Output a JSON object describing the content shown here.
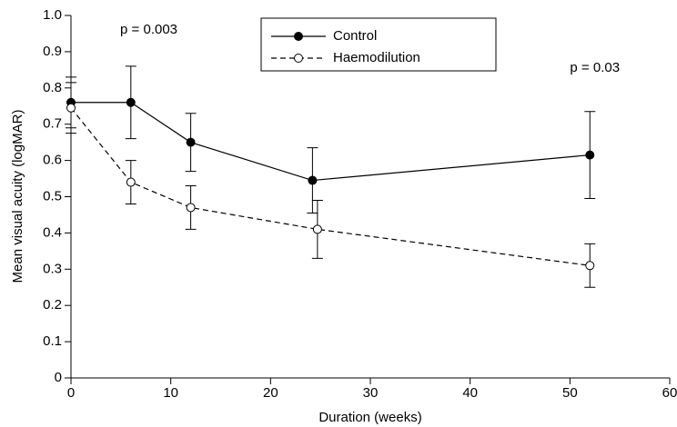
{
  "chart_data": {
    "type": "line",
    "x_label": "Duration (weeks)",
    "y_label": "Mean visual acuity (logMAR)",
    "xlim": [
      0,
      60
    ],
    "xticks": [
      0,
      10,
      20,
      30,
      40,
      50,
      60
    ],
    "ylim": [
      0,
      1
    ],
    "yticks": [
      0,
      0.1,
      0.2,
      0.3,
      0.4,
      0.5,
      0.6,
      0.7,
      0.8,
      0.9,
      {
        "value": 1,
        "label": "1.0"
      }
    ],
    "legend_position": "top-center",
    "series": [
      {
        "name": "Control",
        "color": "#000000",
        "dash": false,
        "marker": "filled",
        "x": [
          0,
          6,
          12,
          24.2,
          52
        ],
        "values": [
          0.76,
          0.76,
          0.65,
          0.545,
          0.615
        ],
        "errors": [
          0.07,
          0.1,
          0.08,
          0.09,
          0.12
        ]
      },
      {
        "name": "Haemodilution",
        "color": "#000000",
        "dash": true,
        "marker": "open",
        "x": [
          0,
          6,
          12,
          24.7,
          52
        ],
        "values": [
          0.745,
          0.54,
          0.47,
          0.41,
          0.31
        ],
        "errors": [
          0.07,
          0.06,
          0.06,
          0.08,
          0.06
        ]
      }
    ],
    "annotations": [
      {
        "text": "p = 0.003",
        "x": 7.8,
        "y": 0.96
      },
      {
        "text": "p = 0.03",
        "x": 52.5,
        "y": 0.855
      }
    ]
  }
}
